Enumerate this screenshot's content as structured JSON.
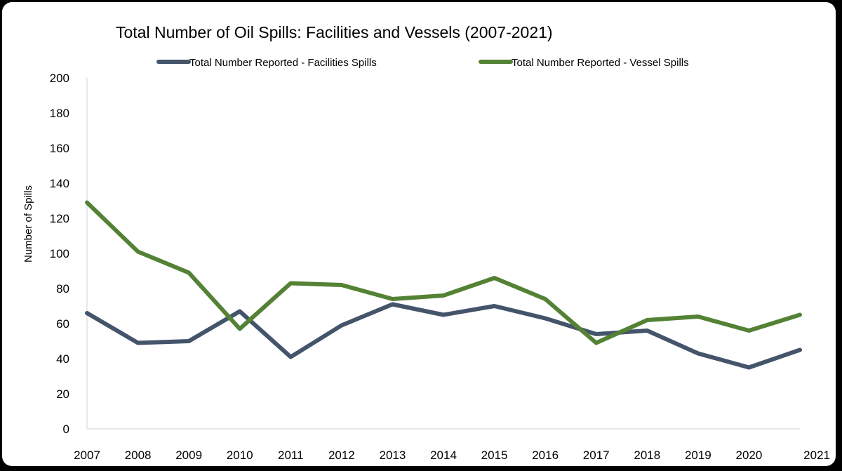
{
  "chart_data": {
    "type": "line",
    "title": "Total Number of Oil Spills: Facilities and Vessels (2007-2021)",
    "xlabel": "",
    "ylabel": "Number of Spills",
    "ylim": [
      0,
      200
    ],
    "yticks": [
      "0",
      "20",
      "40",
      "60",
      "80",
      "100",
      "120",
      "140",
      "160",
      "180",
      "200"
    ],
    "grid": false,
    "legend_position": "top",
    "categories": [
      "2007",
      "2008",
      "2009",
      "2010",
      "2011",
      "2012",
      "2013",
      "2014",
      "2015",
      "2016",
      "2017",
      "2018",
      "2019",
      "2020",
      "2021"
    ],
    "series": [
      {
        "name": "Total Number Reported - Facilities Spills",
        "color": "#44546a",
        "values": [
          66,
          49,
          50,
          67,
          41,
          59,
          71,
          65,
          70,
          63,
          54,
          56,
          43,
          35,
          45
        ]
      },
      {
        "name": "Total Number Reported - Vessel Spills",
        "color": "#548235",
        "values": [
          129,
          101,
          89,
          57,
          83,
          82,
          74,
          76,
          86,
          74,
          49,
          62,
          64,
          56,
          65
        ]
      }
    ]
  }
}
